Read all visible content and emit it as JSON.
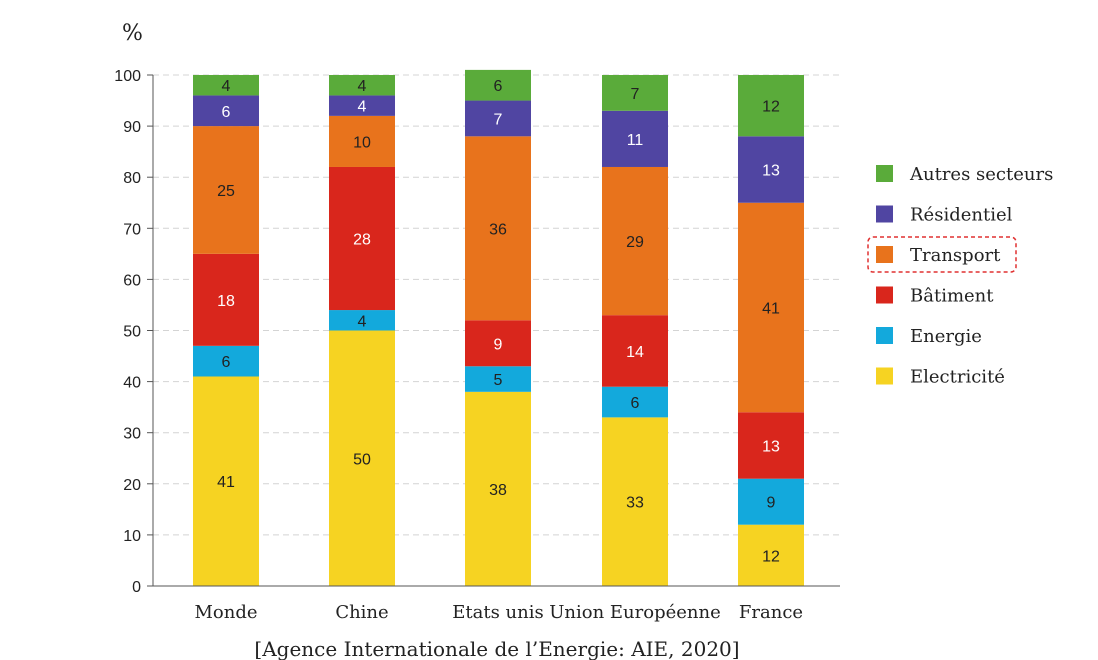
{
  "chart_data": {
    "type": "bar",
    "stacked": true,
    "unit_label": "%",
    "ylim": [
      0,
      100
    ],
    "yticks": [
      0,
      10,
      20,
      30,
      40,
      50,
      60,
      70,
      80,
      90,
      100
    ],
    "grid": "horizontal-dashed",
    "legend_position": "right",
    "categories": [
      "Monde",
      "Chine",
      "Etats unis",
      "Union Européenne",
      "France"
    ],
    "series": [
      {
        "name": "Electricité",
        "color": "#f6d322",
        "values": [
          41,
          50,
          38,
          33,
          12
        ]
      },
      {
        "name": "Energie",
        "color": "#13a9dc",
        "values": [
          6,
          4,
          5,
          6,
          9
        ]
      },
      {
        "name": "Bâtiment",
        "color": "#d9261c",
        "values": [
          18,
          28,
          9,
          14,
          13
        ]
      },
      {
        "name": "Transport",
        "color": "#e8731c",
        "values": [
          25,
          10,
          36,
          29,
          41
        ]
      },
      {
        "name": "Résidentiel",
        "color": "#5045a2",
        "values": [
          6,
          4,
          7,
          11,
          13
        ]
      },
      {
        "name": "Autres secteurs",
        "color": "#5aab3a",
        "values": [
          4,
          4,
          6,
          7,
          12
        ]
      }
    ],
    "legend_order": [
      "Autres secteurs",
      "Résidentiel",
      "Transport",
      "Bâtiment",
      "Energie",
      "Electricité"
    ],
    "highlighted_legend_entry": "Transport",
    "source": "[Agence Internationale de l’Energie: AIE, 2020]"
  }
}
